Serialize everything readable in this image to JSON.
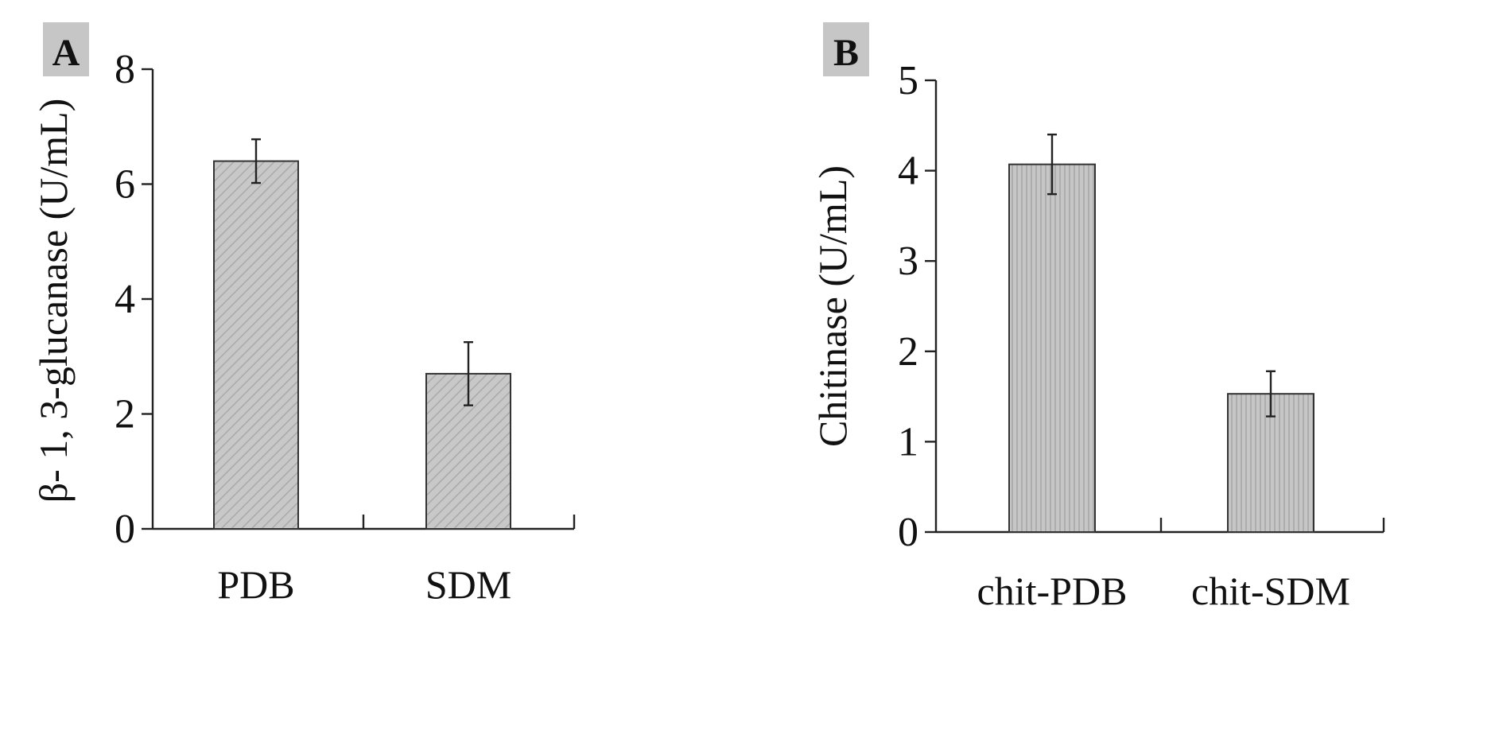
{
  "figure": {
    "background": "#ffffff",
    "bar_fill": "#c4c4c4",
    "panel_label_bg": "#c6c6c6"
  },
  "chart_data": [
    {
      "type": "bar",
      "panel_label": "A",
      "categories": [
        "PDB",
        "SDM"
      ],
      "values": [
        6.4,
        2.7
      ],
      "errors": [
        0.38,
        0.55
      ],
      "ylabel": "β- 1, 3-glucanase (U/mL)",
      "xlabel": "",
      "ylim": [
        0,
        8
      ],
      "yticks": [
        "0",
        "2",
        "4",
        "6",
        "8"
      ],
      "bar_pattern": "diagonal-hatch",
      "grid": false
    },
    {
      "type": "bar",
      "panel_label": "B",
      "categories": [
        "chit-PDB",
        "chit-SDM"
      ],
      "values": [
        4.07,
        1.53
      ],
      "errors": [
        0.33,
        0.25
      ],
      "ylabel": "Chitinase (U/mL)",
      "xlabel": "",
      "ylim": [
        0,
        5
      ],
      "yticks": [
        "0",
        "1",
        "2",
        "3",
        "4",
        "5"
      ],
      "bar_pattern": "vertical-stripes",
      "grid": false
    }
  ]
}
